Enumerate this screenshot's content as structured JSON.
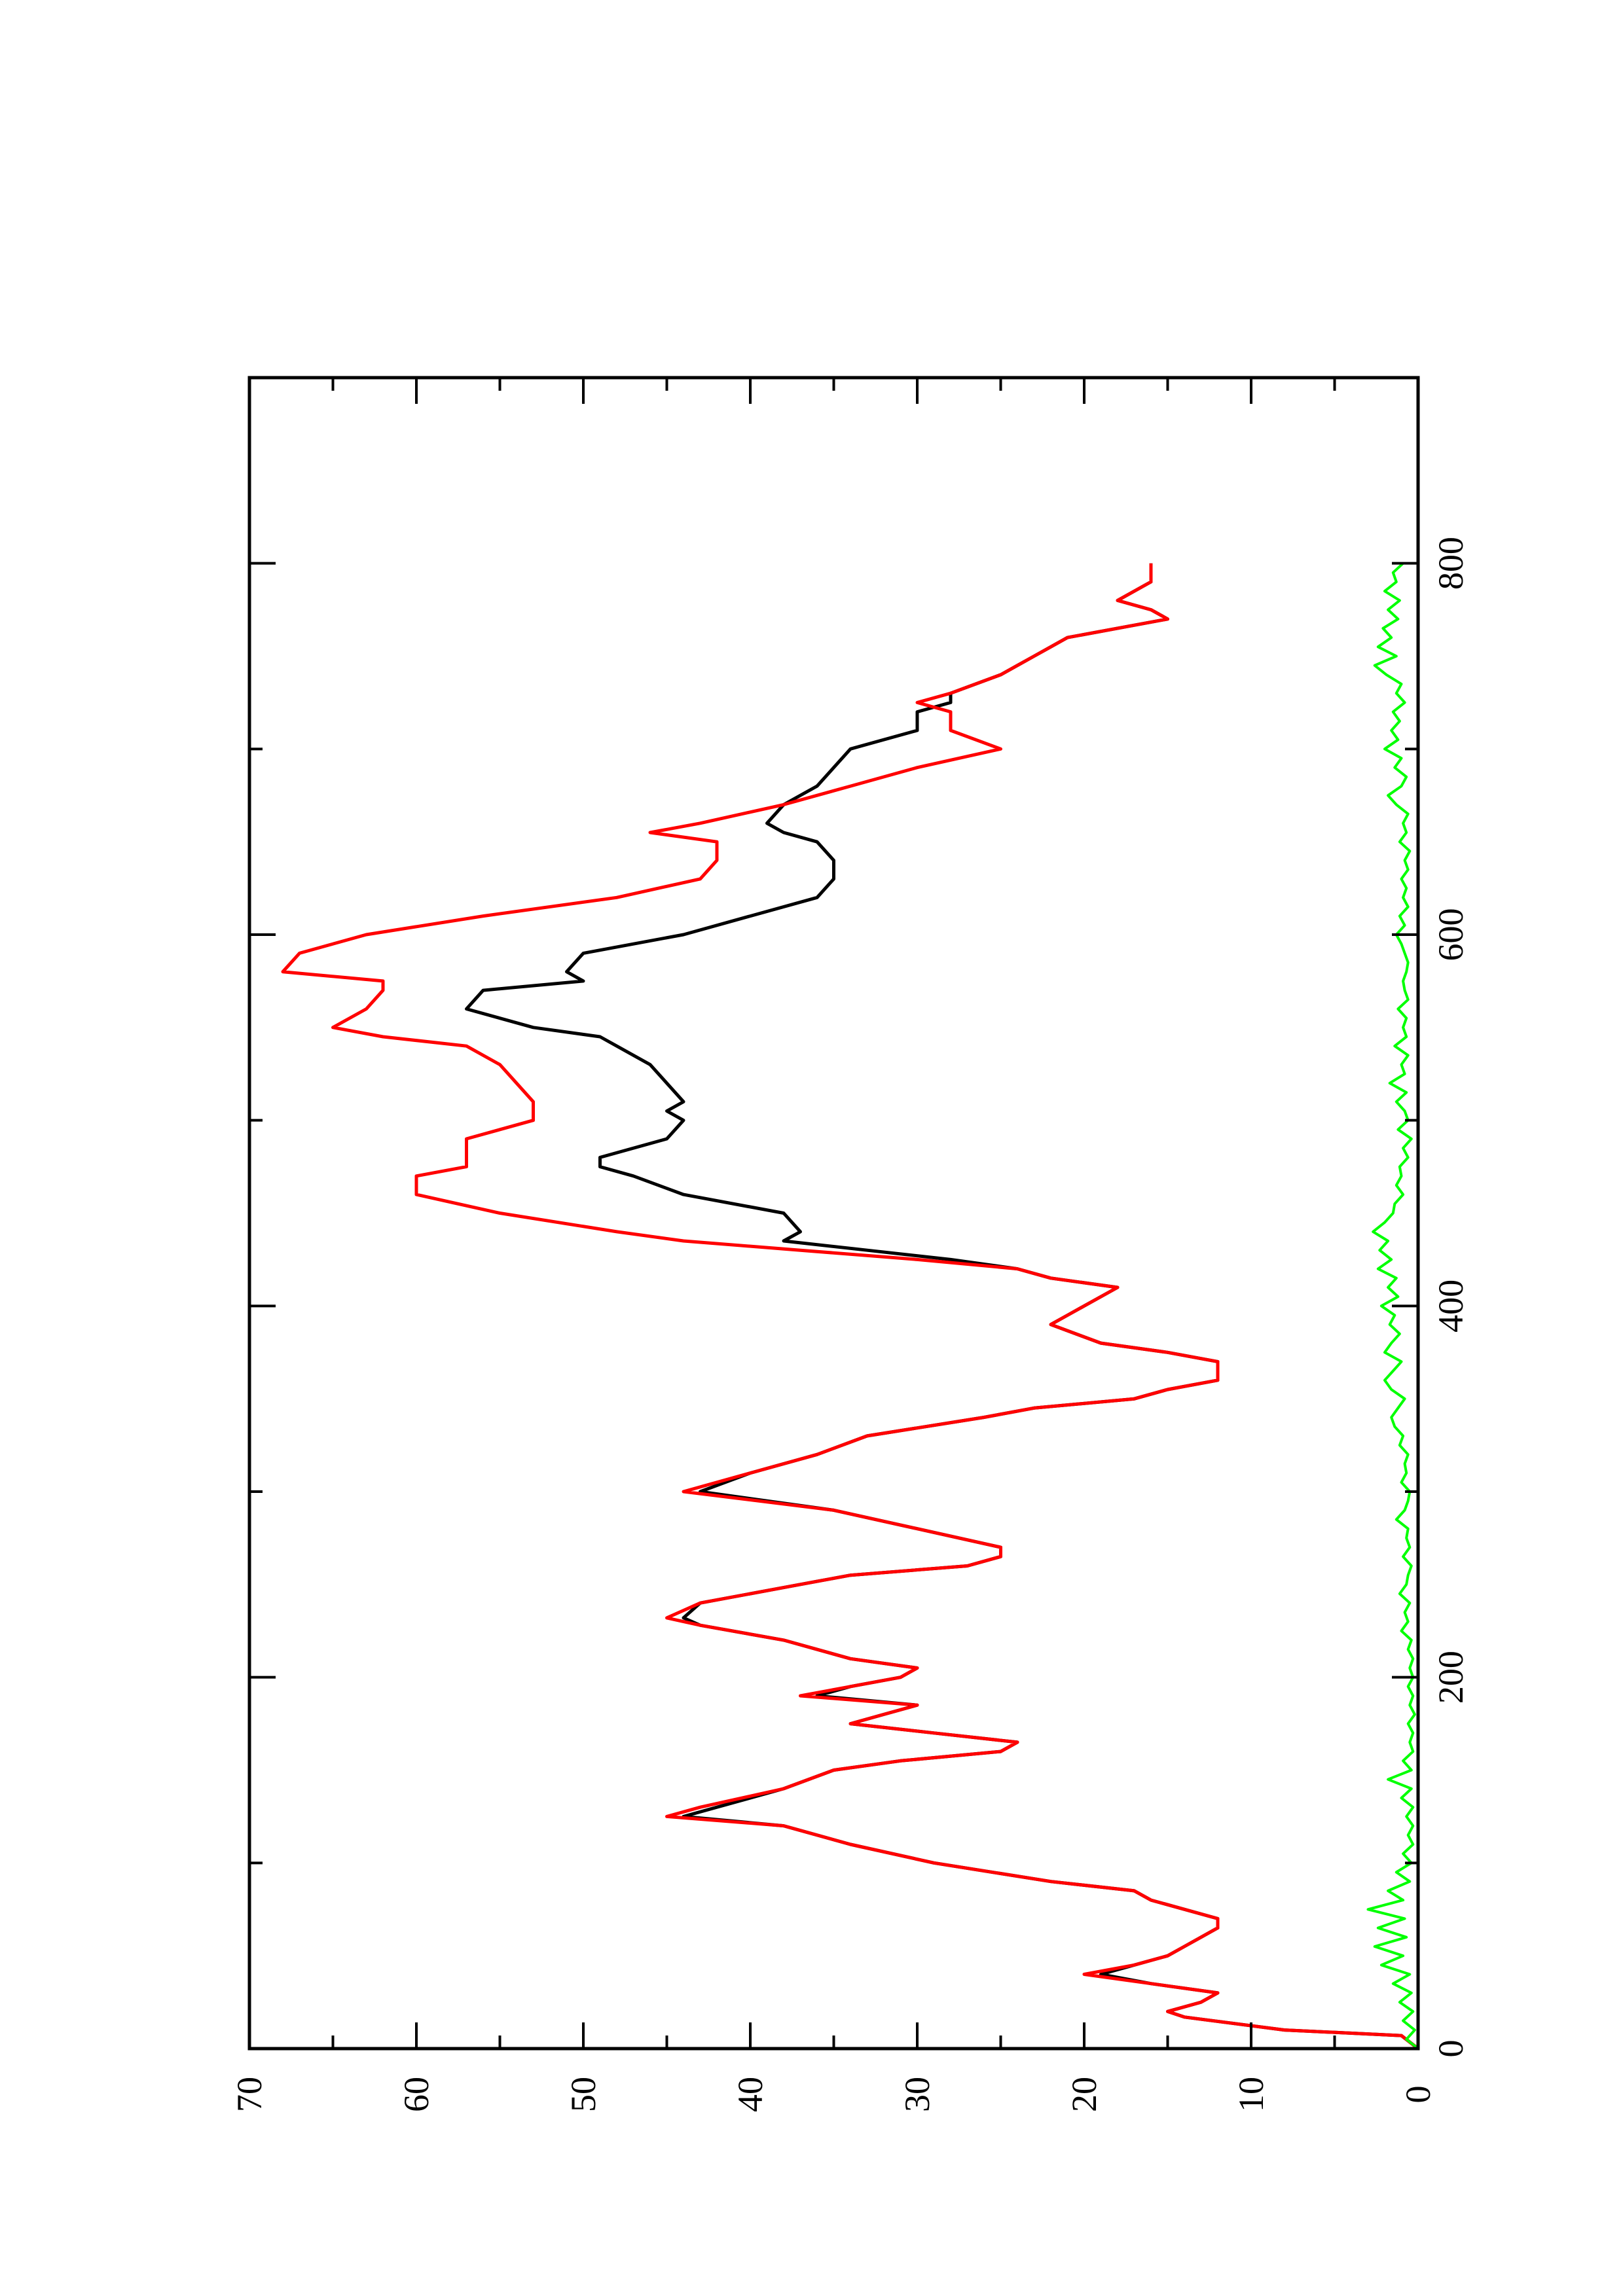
{
  "chart_data": {
    "type": "line",
    "orientation": "rotated-90-ccw",
    "title": "",
    "xlabel": "",
    "ylabel": "",
    "xlim": [
      0,
      900
    ],
    "ylim": [
      0,
      70
    ],
    "x_ticks": [
      "0",
      "200",
      "400",
      "600",
      "800"
    ],
    "y_ticks": [
      "0",
      "10",
      "20",
      "30",
      "40",
      "50",
      "60",
      "70"
    ],
    "x_minor_step": 100,
    "y_minor_step": 5,
    "grid": false,
    "legend": "none",
    "series": [
      {
        "color": "#000000",
        "x": [
          0,
          7,
          10,
          17,
          20,
          25,
          30,
          35,
          40,
          45,
          50,
          55,
          60,
          65,
          70,
          80,
          85,
          90,
          100,
          110,
          120,
          125,
          130,
          140,
          150,
          155,
          160,
          165,
          170,
          175,
          180,
          185,
          190,
          195,
          200,
          205,
          210,
          220,
          228,
          232,
          240,
          250,
          255,
          260,
          265,
          270,
          280,
          290,
          300,
          310,
          320,
          330,
          340,
          345,
          350,
          355,
          360,
          365,
          370,
          375,
          380,
          390,
          395,
          400,
          410,
          415,
          420,
          425,
          430,
          435,
          440,
          450,
          460,
          470,
          475,
          480,
          490,
          500,
          505,
          510,
          520,
          530,
          540,
          545,
          550,
          560,
          570,
          575,
          580,
          590,
          600,
          610,
          620,
          630,
          640,
          650,
          655,
          660,
          670,
          680,
          690,
          700,
          710,
          720,
          725,
          730,
          740,
          745,
          750,
          755,
          760,
          770,
          775,
          780,
          790,
          800
        ],
        "values": [
          0,
          1,
          8,
          14,
          15,
          13,
          12,
          16,
          19,
          17,
          15,
          14,
          13,
          12,
          12,
          16,
          17,
          22,
          29,
          34,
          38,
          44,
          42,
          38,
          35,
          31,
          25,
          24,
          29,
          34,
          32,
          30,
          36,
          34,
          31,
          30,
          34,
          38,
          43,
          44,
          43,
          37,
          34,
          27,
          25,
          25,
          30,
          35,
          43,
          40,
          36,
          33,
          26,
          23,
          17,
          15,
          12,
          12,
          12,
          15,
          19,
          22,
          21,
          20,
          18,
          22,
          24,
          28,
          33,
          38,
          37,
          38,
          44,
          47,
          49,
          49,
          45,
          44,
          45,
          44,
          45,
          46,
          48,
          49,
          53,
          57,
          56,
          50,
          51,
          50,
          44,
          40,
          36,
          35,
          35,
          36,
          38,
          39,
          38,
          36,
          35,
          34,
          30,
          30,
          28,
          28,
          25,
          24,
          23,
          22,
          21,
          15,
          16,
          18,
          16,
          16
        ]
      },
      {
        "color": "#ff0000",
        "x": [
          0,
          7,
          10,
          17,
          20,
          25,
          30,
          35,
          40,
          45,
          50,
          55,
          60,
          65,
          70,
          80,
          85,
          90,
          100,
          110,
          120,
          125,
          130,
          140,
          150,
          155,
          160,
          165,
          170,
          175,
          180,
          185,
          190,
          195,
          200,
          205,
          210,
          220,
          228,
          232,
          240,
          250,
          255,
          260,
          265,
          270,
          280,
          290,
          300,
          310,
          320,
          330,
          340,
          345,
          350,
          355,
          360,
          365,
          370,
          375,
          380,
          390,
          395,
          400,
          410,
          415,
          420,
          425,
          430,
          435,
          440,
          450,
          460,
          470,
          475,
          480,
          490,
          500,
          505,
          510,
          520,
          530,
          540,
          545,
          550,
          560,
          570,
          575,
          580,
          590,
          600,
          610,
          620,
          630,
          640,
          650,
          655,
          660,
          670,
          680,
          690,
          700,
          710,
          720,
          725,
          730,
          740,
          745,
          750,
          755,
          760,
          770,
          775,
          780,
          790,
          800
        ],
        "values": [
          0,
          1,
          8,
          14,
          15,
          13,
          12,
          16,
          20,
          17,
          15,
          14,
          13,
          12,
          12,
          16,
          17,
          22,
          29,
          34,
          38,
          45,
          43,
          38,
          35,
          31,
          25,
          24,
          29,
          34,
          32,
          30,
          37,
          34,
          31,
          30,
          34,
          38,
          43,
          45,
          43,
          37,
          34,
          27,
          25,
          25,
          30,
          35,
          44,
          40,
          36,
          33,
          26,
          23,
          17,
          15,
          12,
          12,
          12,
          15,
          19,
          22,
          21,
          20,
          18,
          22,
          24,
          30,
          37,
          44,
          48,
          55,
          60,
          60,
          57,
          57,
          57,
          53,
          53,
          53,
          54,
          55,
          57,
          62,
          65,
          63,
          62,
          62,
          68,
          67,
          63,
          56,
          48,
          43,
          42,
          42,
          46,
          43,
          38,
          34,
          30,
          25,
          28,
          28,
          30,
          28,
          25,
          24,
          23,
          22,
          21,
          15,
          16,
          18,
          16,
          16
        ]
      },
      {
        "color": "#00ff00",
        "x": [
          0,
          5,
          10,
          15,
          20,
          25,
          30,
          35,
          40,
          45,
          50,
          55,
          60,
          65,
          70,
          75,
          80,
          85,
          90,
          95,
          100,
          105,
          110,
          115,
          120,
          125,
          130,
          135,
          140,
          145,
          150,
          155,
          160,
          165,
          170,
          175,
          180,
          185,
          190,
          195,
          200,
          205,
          210,
          215,
          220,
          225,
          230,
          235,
          240,
          245,
          250,
          255,
          260,
          265,
          270,
          275,
          280,
          285,
          290,
          295,
          300,
          305,
          310,
          315,
          320,
          325,
          330,
          335,
          340,
          345,
          350,
          355,
          360,
          365,
          370,
          375,
          380,
          385,
          390,
          395,
          400,
          405,
          410,
          415,
          420,
          425,
          430,
          435,
          440,
          445,
          450,
          455,
          460,
          465,
          470,
          475,
          480,
          485,
          490,
          495,
          500,
          505,
          510,
          515,
          520,
          525,
          530,
          535,
          540,
          545,
          550,
          555,
          560,
          565,
          570,
          575,
          580,
          585,
          590,
          595,
          600,
          605,
          610,
          615,
          620,
          625,
          630,
          635,
          640,
          645,
          650,
          655,
          660,
          665,
          670,
          675,
          680,
          685,
          690,
          695,
          700,
          705,
          710,
          715,
          720,
          725,
          730,
          735,
          740,
          745,
          750,
          755,
          760,
          765,
          770,
          775,
          780,
          785,
          790,
          795,
          800
        ],
        "values": [
          0,
          0.7,
          0.2,
          0.9,
          0.3,
          1.1,
          0.4,
          1.5,
          0.5,
          2.2,
          0.9,
          2.6,
          0.7,
          2.4,
          0.8,
          3.0,
          0.9,
          1.8,
          0.5,
          1.3,
          0.4,
          0.9,
          0.3,
          0.6,
          0.3,
          0.7,
          0.3,
          1.0,
          0.4,
          1.8,
          0.4,
          0.9,
          0.3,
          0.5,
          0.3,
          0.6,
          0.2,
          0.5,
          0.3,
          0.6,
          0.3,
          0.5,
          0.3,
          0.6,
          0.4,
          1.0,
          0.6,
          0.8,
          0.5,
          1.1,
          0.7,
          0.6,
          0.4,
          0.9,
          0.5,
          0.7,
          0.6,
          1.3,
          0.8,
          0.6,
          0.5,
          1.0,
          0.7,
          0.8,
          0.6,
          1.1,
          0.9,
          1.4,
          1.6,
          1.2,
          0.8,
          1.6,
          2.0,
          1.5,
          1.0,
          2.0,
          1.6,
          1.1,
          1.7,
          1.4,
          2.2,
          1.2,
          1.8,
          1.3,
          2.4,
          1.6,
          2.3,
          1.8,
          2.7,
          2.0,
          1.5,
          1.4,
          0.9,
          1.3,
          1.0,
          1.1,
          0.6,
          0.9,
          0.4,
          1.2,
          0.6,
          0.8,
          1.3,
          0.7,
          1.7,
          0.8,
          1.0,
          0.6,
          1.4,
          0.7,
          0.9,
          0.7,
          1.2,
          0.6,
          0.8,
          0.9,
          0.7,
          0.6,
          0.8,
          1.0,
          1.3,
          0.8,
          1.1,
          0.6,
          0.9,
          0.7,
          1.0,
          0.6,
          0.8,
          0.5,
          1.1,
          0.7,
          0.9,
          0.6,
          1.3,
          1.8,
          1.0,
          0.7,
          1.4,
          1.0,
          2.0,
          1.2,
          1.6,
          1.1,
          1.5,
          0.8,
          1.3,
          1.0,
          1.9,
          2.6,
          1.3,
          2.4,
          1.6,
          2.1,
          1.2,
          1.8,
          1.1,
          2.0,
          1.3,
          1.5,
          0.9
        ]
      }
    ]
  }
}
